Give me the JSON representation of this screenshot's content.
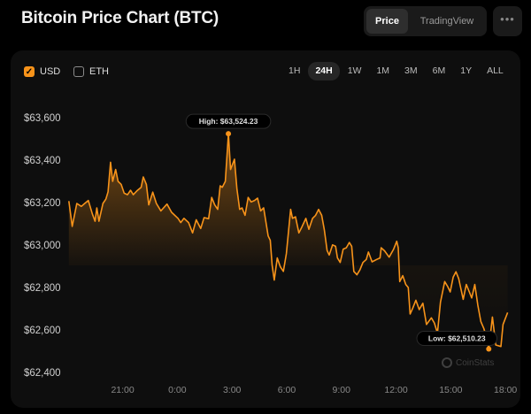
{
  "header": {
    "title": "Bitcoin Price Chart (BTC)",
    "view_tabs": [
      {
        "label": "Price",
        "active": true
      },
      {
        "label": "TradingView",
        "active": false
      }
    ],
    "more_icon": "ellipsis-icon",
    "more_label": "•••"
  },
  "currencies": [
    {
      "label": "USD",
      "checked": true
    },
    {
      "label": "ETH",
      "checked": false
    }
  ],
  "ranges": [
    {
      "label": "1H"
    },
    {
      "label": "24H",
      "active": true
    },
    {
      "label": "1W"
    },
    {
      "label": "1M"
    },
    {
      "label": "3M"
    },
    {
      "label": "6M"
    },
    {
      "label": "1Y"
    },
    {
      "label": "ALL"
    }
  ],
  "watermark": "CoinStats",
  "colors": {
    "accent": "#f7931a",
    "background": "#000000",
    "card": "#0e0e0e"
  },
  "chart_data": {
    "type": "area",
    "yticks": [
      "$63,600",
      "$63,400",
      "$63,200",
      "$63,000",
      "$62,800",
      "$62,600",
      "$62,400"
    ],
    "xticks": [
      "21:00",
      "0:00",
      "3:00",
      "6:00",
      "9:00",
      "12:00",
      "15:00",
      "18:00"
    ],
    "ylim": [
      62400,
      63600
    ],
    "high": {
      "label": "High: $63,524.23",
      "time": "02:48",
      "value": 63524.23
    },
    "low": {
      "label": "Low: $62,510.23",
      "time": "17:05",
      "value": 62510.23
    },
    "points": [
      [
        "18:03",
        63207
      ],
      [
        "18:14",
        63088
      ],
      [
        "18:29",
        63196
      ],
      [
        "18:44",
        63182
      ],
      [
        "18:55",
        63196
      ],
      [
        "19:07",
        63210
      ],
      [
        "19:20",
        63147
      ],
      [
        "19:29",
        63112
      ],
      [
        "19:35",
        63175
      ],
      [
        "19:42",
        63112
      ],
      [
        "19:55",
        63196
      ],
      [
        "20:05",
        63217
      ],
      [
        "20:12",
        63251
      ],
      [
        "20:20",
        63390
      ],
      [
        "20:27",
        63300
      ],
      [
        "20:37",
        63356
      ],
      [
        "20:45",
        63300
      ],
      [
        "20:55",
        63286
      ],
      [
        "21:05",
        63244
      ],
      [
        "21:16",
        63237
      ],
      [
        "21:26",
        63258
      ],
      [
        "21:35",
        63237
      ],
      [
        "21:49",
        63258
      ],
      [
        "22:01",
        63272
      ],
      [
        "22:08",
        63321
      ],
      [
        "22:18",
        63286
      ],
      [
        "22:26",
        63189
      ],
      [
        "22:39",
        63249
      ],
      [
        "22:51",
        63196
      ],
      [
        "23:06",
        63161
      ],
      [
        "23:26",
        63193
      ],
      [
        "23:41",
        63154
      ],
      [
        "00:02",
        63126
      ],
      [
        "00:11",
        63106
      ],
      [
        "00:22",
        63126
      ],
      [
        "00:37",
        63106
      ],
      [
        "00:50",
        63057
      ],
      [
        "01:02",
        63119
      ],
      [
        "01:17",
        63078
      ],
      [
        "01:28",
        63129
      ],
      [
        "01:43",
        63124
      ],
      [
        "01:53",
        63224
      ],
      [
        "02:03",
        63189
      ],
      [
        "02:13",
        63168
      ],
      [
        "02:21",
        63279
      ],
      [
        "02:28",
        63272
      ],
      [
        "02:38",
        63300
      ],
      [
        "02:48",
        63524.23
      ],
      [
        "02:55",
        63356
      ],
      [
        "03:08",
        63404
      ],
      [
        "03:16",
        63265
      ],
      [
        "03:25",
        63168
      ],
      [
        "03:33",
        63175
      ],
      [
        "03:43",
        63140
      ],
      [
        "03:53",
        63224
      ],
      [
        "04:03",
        63203
      ],
      [
        "04:14",
        63210
      ],
      [
        "04:24",
        63221
      ],
      [
        "04:34",
        63161
      ],
      [
        "04:44",
        63175
      ],
      [
        "04:59",
        63043
      ],
      [
        "05:06",
        63022
      ],
      [
        "05:12",
        62904
      ],
      [
        "05:19",
        62835
      ],
      [
        "05:29",
        62939
      ],
      [
        "05:39",
        62897
      ],
      [
        "05:49",
        62876
      ],
      [
        "05:59",
        62960
      ],
      [
        "06:13",
        63168
      ],
      [
        "06:19",
        63126
      ],
      [
        "06:29",
        63133
      ],
      [
        "06:40",
        63057
      ],
      [
        "06:50",
        63085
      ],
      [
        "07:03",
        63126
      ],
      [
        "07:13",
        63074
      ],
      [
        "07:25",
        63126
      ],
      [
        "07:35",
        63140
      ],
      [
        "07:45",
        63168
      ],
      [
        "07:55",
        63140
      ],
      [
        "08:04",
        63071
      ],
      [
        "08:13",
        62974
      ],
      [
        "08:20",
        62953
      ],
      [
        "08:31",
        63001
      ],
      [
        "08:41",
        62994
      ],
      [
        "08:47",
        62939
      ],
      [
        "08:56",
        62918
      ],
      [
        "09:06",
        62981
      ],
      [
        "09:16",
        62987
      ],
      [
        "09:26",
        63012
      ],
      [
        "09:34",
        62994
      ],
      [
        "09:41",
        62876
      ],
      [
        "09:51",
        62860
      ],
      [
        "10:01",
        62883
      ],
      [
        "10:11",
        62918
      ],
      [
        "10:22",
        62932
      ],
      [
        "10:29",
        62967
      ],
      [
        "10:41",
        62921
      ],
      [
        "10:56",
        62932
      ],
      [
        "11:07",
        62939
      ],
      [
        "11:11",
        62987
      ],
      [
        "11:22",
        62973
      ],
      [
        "11:37",
        62943
      ],
      [
        "11:52",
        62981
      ],
      [
        "12:02",
        63018
      ],
      [
        "12:07",
        62987
      ],
      [
        "12:12",
        62828
      ],
      [
        "12:22",
        62856
      ],
      [
        "12:32",
        62814
      ],
      [
        "12:40",
        62800
      ],
      [
        "12:46",
        62675
      ],
      [
        "12:55",
        62703
      ],
      [
        "13:05",
        62740
      ],
      [
        "13:16",
        62696
      ],
      [
        "13:28",
        62726
      ],
      [
        "13:40",
        62626
      ],
      [
        "13:56",
        62657
      ],
      [
        "14:06",
        62633
      ],
      [
        "14:16",
        62585
      ],
      [
        "14:26",
        62731
      ],
      [
        "14:40",
        62828
      ],
      [
        "14:50",
        62804
      ],
      [
        "14:58",
        62779
      ],
      [
        "15:08",
        62849
      ],
      [
        "15:17",
        62874
      ],
      [
        "15:26",
        62842
      ],
      [
        "15:41",
        62744
      ],
      [
        "15:51",
        62814
      ],
      [
        "16:01",
        62779
      ],
      [
        "16:09",
        62751
      ],
      [
        "16:19",
        62814
      ],
      [
        "16:29",
        62717
      ],
      [
        "16:39",
        62640
      ],
      [
        "16:49",
        62606
      ],
      [
        "16:59",
        62557
      ],
      [
        "17:05",
        62510.23
      ],
      [
        "17:17",
        62661
      ],
      [
        "17:28",
        62529
      ],
      [
        "17:45",
        62522
      ],
      [
        "17:52",
        62626
      ],
      [
        "18:07",
        62682
      ]
    ]
  }
}
